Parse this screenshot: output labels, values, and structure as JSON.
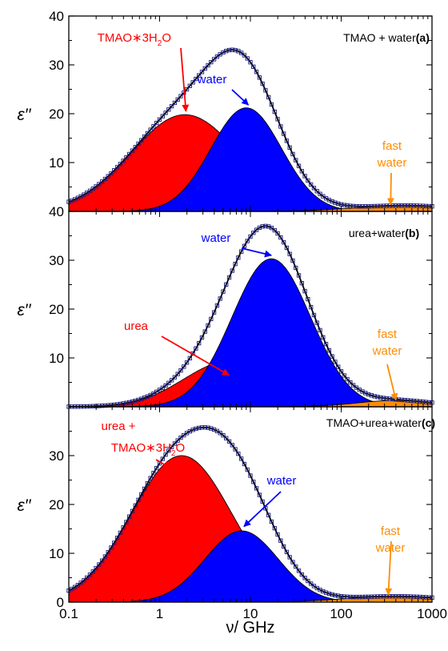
{
  "figure": {
    "xlabel": "ν/ GHz",
    "ylabel": "ε′′",
    "x_tick_labels": [
      "0.1",
      "1",
      "10",
      "100",
      "1000"
    ],
    "xlim": [
      0.1,
      1000
    ],
    "xscale": "log"
  },
  "colors": {
    "red": "#ff0000",
    "blue": "#0000ff",
    "orange": "#ff8c00",
    "black": "#000000",
    "marker": "#1a1a80"
  },
  "chart_data": [
    {
      "type": "area",
      "panel_label": "(a)",
      "panel_text": "TMAO + water",
      "ylim": [
        0,
        40
      ],
      "yticks": [
        "10",
        "20",
        "30",
        "40"
      ],
      "series": [
        {
          "name": "TMAO*3H2O",
          "color": "#ff0000",
          "peak_x": 1.9,
          "peak_y": 19.8,
          "width": 1.4
        },
        {
          "name": "water",
          "color": "#0000ff",
          "peak_x": 9.0,
          "peak_y": 21.2,
          "width": 0.92
        },
        {
          "name": "fast water",
          "color": "#ff8c00",
          "peak_x": 500,
          "peak_y": 1.2,
          "width": 1.3
        }
      ],
      "annotations": [
        {
          "text": "TMAO∗3H",
          "sub": "2",
          "tail": "O",
          "color": "#ff0000",
          "arrow_to": [
            1.95,
            20.5
          ]
        },
        {
          "text": "water",
          "color": "#0000ff",
          "arrow_to": [
            9.5,
            21.8
          ]
        },
        {
          "text": "fast",
          "text2": "water",
          "color": "#ff8c00",
          "arrow_to": [
            350,
            1.4
          ]
        }
      ]
    },
    {
      "type": "area",
      "panel_label": "(b)",
      "panel_text": "urea+water",
      "ylim": [
        0,
        40
      ],
      "yticks": [
        "10",
        "20",
        "30",
        "40"
      ],
      "series": [
        {
          "name": "urea",
          "color": "#ff0000",
          "peak_x": 6.0,
          "peak_y": 9.4,
          "width": 1.2
        },
        {
          "name": "water",
          "color": "#0000ff",
          "peak_x": 17.0,
          "peak_y": 30.3,
          "width": 1.02
        },
        {
          "name": "fast water",
          "color": "#ff8c00",
          "peak_x": 400,
          "peak_y": 1.3,
          "width": 1.0
        }
      ],
      "annotations": [
        {
          "text": "urea",
          "color": "#ff0000",
          "arrow_to": [
            5.8,
            6.5
          ]
        },
        {
          "text": "water",
          "color": "#0000ff",
          "arrow_to": [
            17,
            31.0
          ]
        },
        {
          "text": "fast",
          "text2": "water",
          "color": "#ff8c00",
          "arrow_to": [
            400,
            1.4
          ]
        }
      ]
    },
    {
      "type": "area",
      "panel_label": "(c)",
      "panel_text": "TMAO+urea+water",
      "ylim": [
        0,
        40
      ],
      "yticks": [
        "0",
        "10",
        "20",
        "30"
      ],
      "series": [
        {
          "name": "urea + TMAO*3H2O",
          "color": "#ff0000",
          "peak_x": 1.75,
          "peak_y": 30.0,
          "width": 1.3
        },
        {
          "name": "water",
          "color": "#0000ff",
          "peak_x": 8.0,
          "peak_y": 14.6,
          "width": 0.95
        },
        {
          "name": "fast water",
          "color": "#ff8c00",
          "peak_x": 400,
          "peak_y": 1.2,
          "width": 1.3
        }
      ],
      "annotations": [
        {
          "text": "urea +",
          "color": "#ff0000"
        },
        {
          "text": "TMAO∗3H",
          "sub": "2",
          "tail": "O",
          "color": "#ff0000",
          "arrow_to": [
            1.3,
            27.5
          ]
        },
        {
          "text": "water",
          "color": "#0000ff",
          "arrow_to": [
            8.5,
            15.5
          ]
        },
        {
          "text": "fast",
          "text2": "water",
          "color": "#ff8c00",
          "arrow_to": [
            330,
            1.5
          ]
        }
      ]
    }
  ]
}
